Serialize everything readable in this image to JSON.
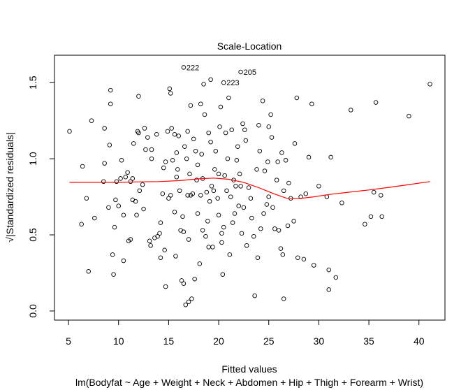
{
  "chart_data": {
    "type": "scatter",
    "title": "Scale-Location",
    "xlabel": "Fitted values",
    "xlabel2": "lm(Bodyfat ~ Age + Weight + Neck + Abdomen + Hip + Thigh + Forearm + Wrist)",
    "ylabel": "√|Standardized residuals|",
    "xlim": [
      3.6,
      42.6
    ],
    "ylim": [
      -0.06,
      1.68
    ],
    "x_ticks": [
      5,
      10,
      15,
      20,
      25,
      30,
      35,
      40
    ],
    "x_tick_labels": [
      "5",
      "10",
      "15",
      "20",
      "25",
      "30",
      "35",
      "40"
    ],
    "y_ticks": [
      0.0,
      0.5,
      1.0,
      1.5
    ],
    "y_tick_labels": [
      "0.0",
      "0.5",
      "1.0",
      "1.5"
    ],
    "grid": false,
    "point_color": "#000000",
    "smoother_color": "#ff0000",
    "labeled_points": [
      {
        "label": "222",
        "x": 16.5,
        "y": 1.6
      },
      {
        "label": "223",
        "x": 20.5,
        "y": 1.5
      },
      {
        "label": "205",
        "x": 22.2,
        "y": 1.57
      }
    ],
    "smoother": {
      "x": [
        5.1,
        8,
        10,
        12,
        14,
        16,
        18,
        19.5,
        21,
        22.5,
        24,
        25.5,
        26.8,
        28,
        29.5,
        31,
        33,
        35,
        37,
        39,
        41.1
      ],
      "y": [
        0.845,
        0.845,
        0.845,
        0.848,
        0.85,
        0.856,
        0.868,
        0.873,
        0.865,
        0.845,
        0.81,
        0.77,
        0.74,
        0.738,
        0.75,
        0.765,
        0.78,
        0.795,
        0.812,
        0.83,
        0.85
      ]
    },
    "points": [
      [
        5.1,
        1.18
      ],
      [
        6.3,
        0.57
      ],
      [
        6.4,
        0.95
      ],
      [
        6.8,
        0.74
      ],
      [
        7.0,
        0.26
      ],
      [
        7.3,
        1.25
      ],
      [
        7.6,
        0.61
      ],
      [
        8.5,
        0.85
      ],
      [
        8.6,
        0.97
      ],
      [
        8.6,
        1.2
      ],
      [
        9.0,
        0.68
      ],
      [
        9.1,
        1.09
      ],
      [
        9.2,
        1.45
      ],
      [
        9.2,
        1.36
      ],
      [
        9.4,
        0.37
      ],
      [
        9.5,
        0.24
      ],
      [
        9.6,
        0.55
      ],
      [
        9.7,
        0.73
      ],
      [
        9.8,
        0.85
      ],
      [
        10.0,
        0.69
      ],
      [
        10.2,
        0.87
      ],
      [
        10.3,
        0.99
      ],
      [
        10.5,
        0.33
      ],
      [
        10.5,
        0.63
      ],
      [
        10.7,
        0.88
      ],
      [
        10.9,
        0.91
      ],
      [
        11.0,
        0.46
      ],
      [
        11.2,
        0.85
      ],
      [
        11.2,
        0.47
      ],
      [
        11.4,
        0.73
      ],
      [
        11.4,
        0.87
      ],
      [
        11.5,
        1.1
      ],
      [
        11.7,
        0.72
      ],
      [
        11.8,
        0.63
      ],
      [
        11.9,
        1.18
      ],
      [
        12.0,
        1.17
      ],
      [
        12.0,
        1.41
      ],
      [
        12.1,
        0.79
      ],
      [
        12.4,
        0.83
      ],
      [
        12.5,
        0.67
      ],
      [
        12.6,
        1.2
      ],
      [
        12.7,
        1.06
      ],
      [
        12.9,
        1.14
      ],
      [
        13.1,
        0.46
      ],
      [
        13.2,
        0.43
      ],
      [
        13.3,
        1.0
      ],
      [
        13.3,
        1.06
      ],
      [
        13.6,
        0.48
      ],
      [
        13.8,
        1.16
      ],
      [
        13.9,
        0.49
      ],
      [
        14.1,
        0.51
      ],
      [
        14.2,
        0.35
      ],
      [
        14.2,
        0.58
      ],
      [
        14.4,
        0.77
      ],
      [
        14.5,
        0.94
      ],
      [
        14.6,
        0.4
      ],
      [
        14.7,
        0.16
      ],
      [
        14.7,
        0.98
      ],
      [
        14.9,
        1.18
      ],
      [
        15.0,
        0.74
      ],
      [
        15.1,
        1.46
      ],
      [
        15.2,
        1.43
      ],
      [
        15.2,
        0.76
      ],
      [
        15.3,
        1.2
      ],
      [
        15.4,
        0.99
      ],
      [
        15.6,
        1.16
      ],
      [
        15.6,
        0.65
      ],
      [
        15.7,
        0.36
      ],
      [
        15.8,
        1.04
      ],
      [
        15.8,
        0.88
      ],
      [
        15.9,
        0.93
      ],
      [
        16.0,
        1.15
      ],
      [
        16.1,
        0.79
      ],
      [
        16.2,
        0.53
      ],
      [
        16.3,
        0.2
      ],
      [
        16.4,
        0.62
      ],
      [
        16.5,
        0.52
      ],
      [
        16.5,
        0.18
      ],
      [
        16.6,
        1.08
      ],
      [
        16.7,
        0.04
      ],
      [
        16.8,
        1.0
      ],
      [
        16.9,
        1.18
      ],
      [
        16.9,
        0.76
      ],
      [
        17.0,
        0.47
      ],
      [
        17.0,
        0.06
      ],
      [
        17.1,
        0.9
      ],
      [
        17.2,
        1.35
      ],
      [
        17.2,
        0.76
      ],
      [
        17.3,
        0.08
      ],
      [
        17.4,
        0.77
      ],
      [
        17.5,
        1.13
      ],
      [
        17.6,
        0.21
      ],
      [
        17.7,
        1.05
      ],
      [
        17.8,
        0.86
      ],
      [
        17.9,
        0.96
      ],
      [
        17.9,
        0.64
      ],
      [
        18.1,
        0.31
      ],
      [
        18.2,
        1.36
      ],
      [
        18.2,
        0.76
      ],
      [
        18.3,
        1.03
      ],
      [
        18.4,
        0.87
      ],
      [
        18.4,
        0.53
      ],
      [
        18.6,
        1.29
      ],
      [
        18.7,
        0.49
      ],
      [
        18.8,
        0.78
      ],
      [
        18.9,
        0.59
      ],
      [
        19.0,
        1.17
      ],
      [
        19.0,
        0.42
      ],
      [
        19.1,
        0.72
      ],
      [
        19.2,
        1.11
      ],
      [
        19.3,
        0.82
      ],
      [
        19.4,
        0.42
      ],
      [
        19.5,
        0.79
      ],
      [
        19.6,
        0.93
      ],
      [
        19.7,
        1.05
      ],
      [
        19.9,
        0.74
      ],
      [
        20.0,
        0.9
      ],
      [
        20.0,
        0.63
      ],
      [
        20.1,
        1.21
      ],
      [
        20.2,
        1.34
      ],
      [
        20.3,
        0.51
      ],
      [
        20.3,
        0.45
      ],
      [
        20.4,
        0.24
      ],
      [
        20.5,
        0.55
      ],
      [
        20.6,
        0.89
      ],
      [
        20.7,
        1.17
      ],
      [
        20.8,
        0.79
      ],
      [
        20.9,
        1.0
      ],
      [
        21.0,
        1.4
      ],
      [
        21.1,
        0.37
      ],
      [
        21.2,
        0.75
      ],
      [
        21.3,
        1.19
      ],
      [
        21.4,
        0.58
      ],
      [
        21.5,
        0.86
      ],
      [
        21.6,
        0.64
      ],
      [
        21.7,
        0.82
      ],
      [
        21.8,
        0.99
      ],
      [
        21.9,
        1.08
      ],
      [
        22.0,
        0.69
      ],
      [
        22.1,
        0.9
      ],
      [
        22.2,
        0.82
      ],
      [
        22.3,
        0.51
      ],
      [
        22.4,
        1.23
      ],
      [
        22.5,
        0.68
      ],
      [
        22.6,
        1.19
      ],
      [
        22.7,
        1.12
      ],
      [
        22.8,
        0.43
      ],
      [
        23.0,
        0.81
      ],
      [
        23.2,
        0.74
      ],
      [
        23.3,
        0.61
      ],
      [
        23.5,
        0.49
      ],
      [
        23.6,
        0.1
      ],
      [
        23.8,
        0.93
      ],
      [
        23.9,
        0.35
      ],
      [
        24.0,
        1.22
      ],
      [
        24.1,
        1.05
      ],
      [
        24.2,
        0.54
      ],
      [
        24.4,
        1.38
      ],
      [
        24.5,
        0.64
      ],
      [
        24.6,
        0.92
      ],
      [
        24.8,
        0.7
      ],
      [
        24.9,
        0.98
      ],
      [
        25.0,
        1.21
      ],
      [
        25.0,
        0.75
      ],
      [
        25.2,
        1.29
      ],
      [
        25.3,
        1.14
      ],
      [
        25.4,
        0.68
      ],
      [
        25.6,
        0.54
      ],
      [
        25.8,
        0.86
      ],
      [
        25.9,
        0.98
      ],
      [
        26.0,
        0.53
      ],
      [
        26.2,
        0.41
      ],
      [
        26.3,
        1.04
      ],
      [
        26.4,
        0.37
      ],
      [
        26.5,
        0.08
      ],
      [
        26.5,
        0.79
      ],
      [
        26.7,
        0.99
      ],
      [
        26.9,
        0.56
      ],
      [
        27.0,
        0.84
      ],
      [
        27.2,
        0.74
      ],
      [
        27.5,
        0.59
      ],
      [
        27.6,
        1.1
      ],
      [
        27.8,
        1.4
      ],
      [
        27.9,
        0.35
      ],
      [
        28.2,
        0.75
      ],
      [
        28.5,
        0.34
      ],
      [
        28.7,
        0.77
      ],
      [
        29.0,
        1.01
      ],
      [
        29.3,
        1.36
      ],
      [
        29.5,
        0.3
      ],
      [
        30.0,
        0.82
      ],
      [
        30.8,
        0.75
      ],
      [
        31.0,
        0.14
      ],
      [
        31.0,
        0.27
      ],
      [
        31.2,
        1.01
      ],
      [
        31.7,
        0.22
      ],
      [
        32.3,
        0.71
      ],
      [
        33.2,
        1.32
      ],
      [
        34.6,
        0.57
      ],
      [
        35.2,
        0.62
      ],
      [
        35.5,
        0.78
      ],
      [
        35.7,
        1.37
      ],
      [
        36.2,
        0.76
      ],
      [
        36.3,
        0.62
      ],
      [
        39.0,
        1.28
      ],
      [
        41.1,
        1.49
      ],
      [
        16.5,
        1.6
      ],
      [
        20.5,
        1.5
      ],
      [
        22.2,
        1.57
      ],
      [
        18.5,
        1.49
      ],
      [
        19.2,
        1.52
      ]
    ]
  }
}
